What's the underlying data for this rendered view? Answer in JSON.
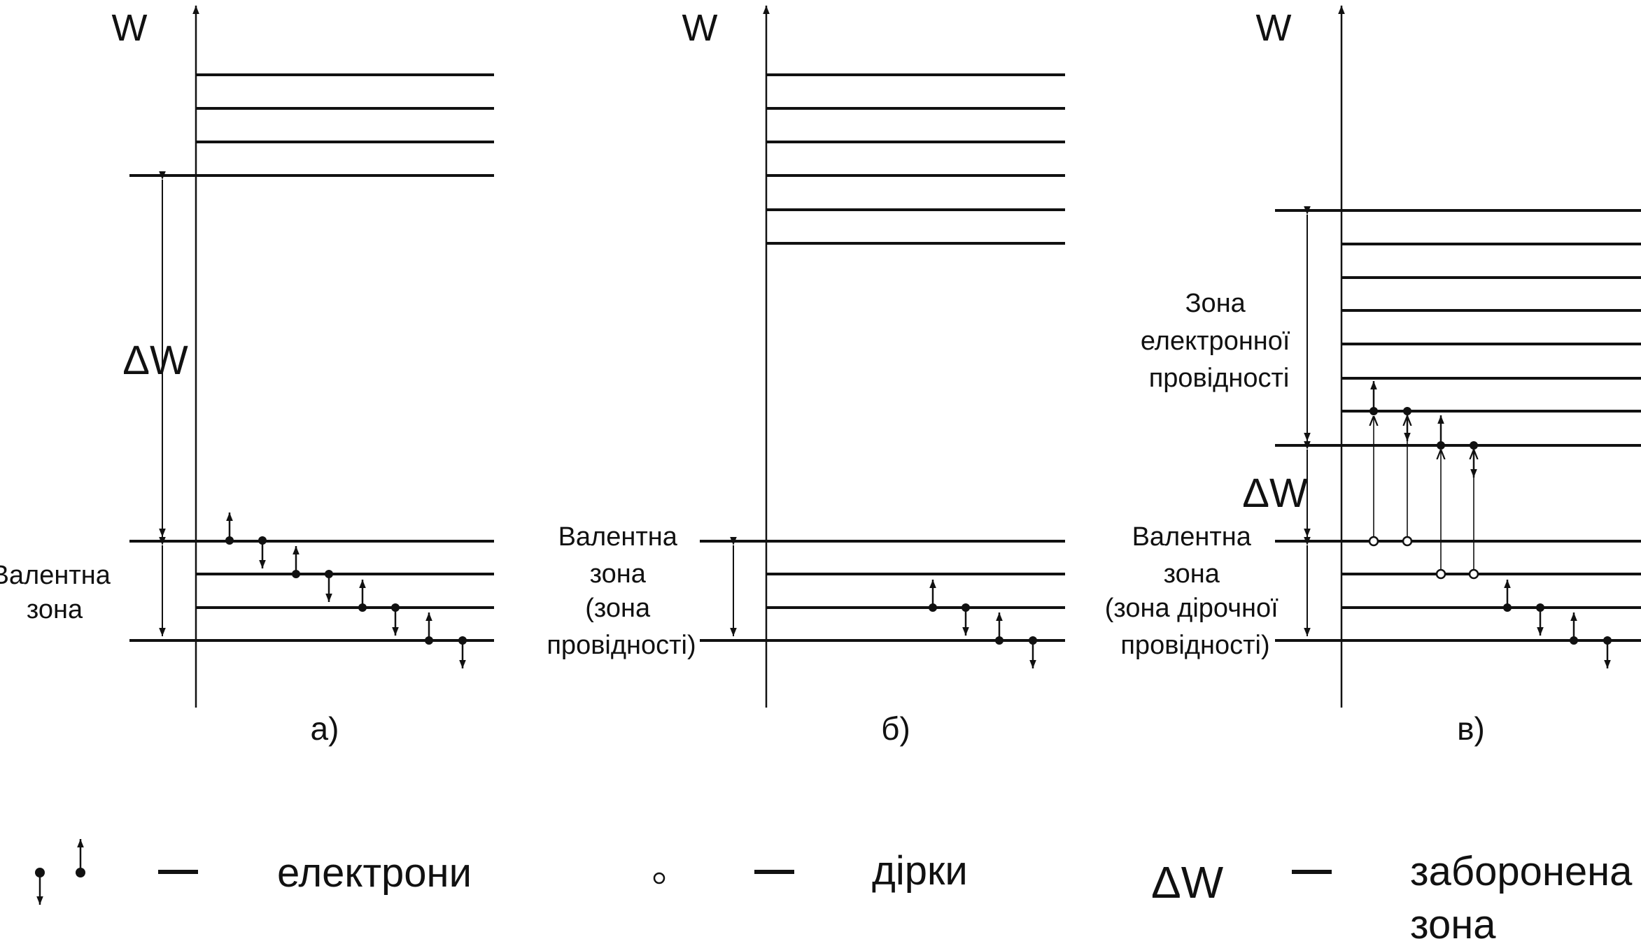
{
  "colors": {
    "ink": "#111111",
    "background": "#ffffff"
  },
  "panels": [
    {
      "id": "a",
      "axis_label": "W",
      "caption": "а)",
      "gap_label": "ΔW",
      "zone_labels": [
        [
          "Валентна",
          "зона"
        ]
      ]
    },
    {
      "id": "b",
      "axis_label": "W",
      "caption": "б)",
      "zone_labels": [
        [
          "Валентна",
          "зона",
          "(зона",
          "провідності)"
        ]
      ]
    },
    {
      "id": "c",
      "axis_label": "W",
      "caption": "в)",
      "gap_label": "ΔW",
      "zone_labels": [
        [
          "Зона",
          "електронної",
          "провідності"
        ],
        [
          "Валентна",
          "зона",
          "(зона дірочної",
          "провідності)"
        ]
      ]
    }
  ],
  "legend": {
    "electrons": {
      "icon": "electron-arrows-icon",
      "dash": "—",
      "label": "електрони"
    },
    "holes": {
      "icon": "hole-icon",
      "dash": "—",
      "label": "дірки"
    },
    "gap": {
      "symbol": "ΔW",
      "dash": "—",
      "label_lines": [
        "заборонена",
        "зона"
      ]
    }
  }
}
